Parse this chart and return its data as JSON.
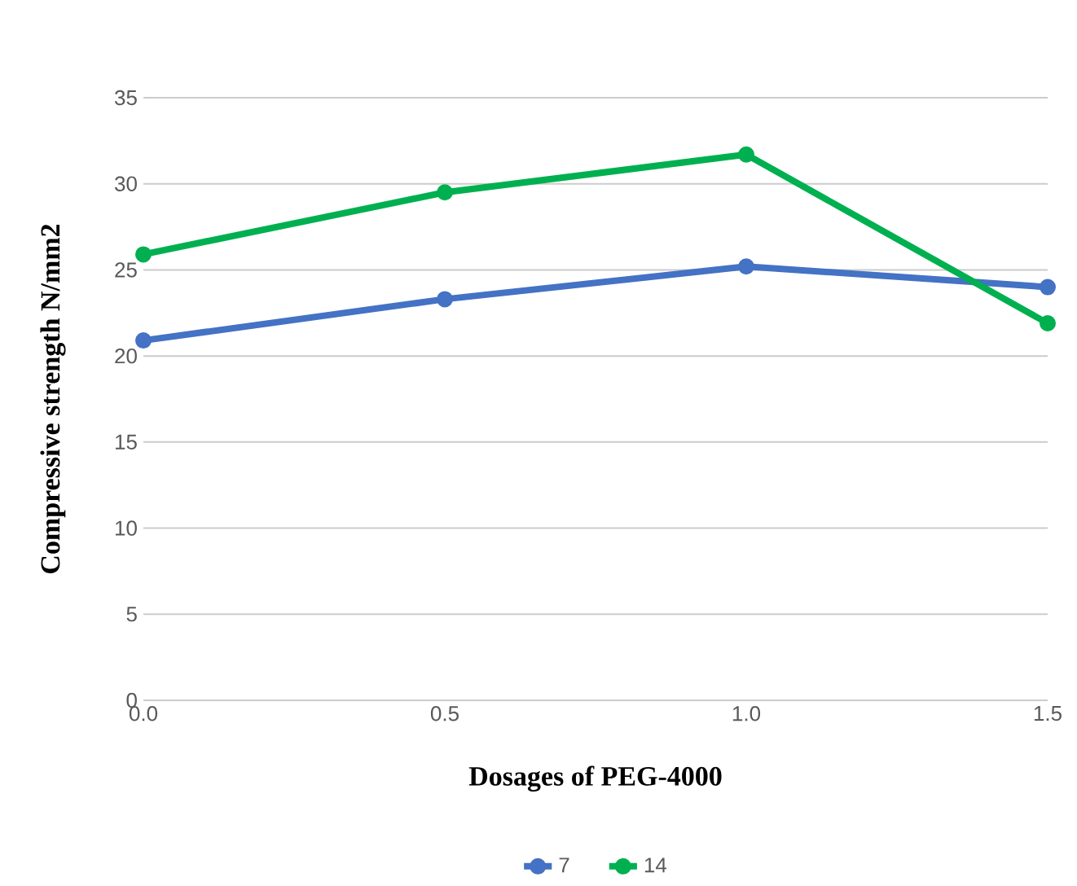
{
  "chart_data": {
    "type": "line",
    "xlabel": "Dosages of PEG-4000",
    "ylabel": "Compressive strength N/mm2",
    "x": [
      0.0,
      0.5,
      1.0,
      1.5
    ],
    "series": [
      {
        "name": "7",
        "color": "#4472c4",
        "values": [
          20.9,
          23.3,
          25.2,
          24.0
        ]
      },
      {
        "name": "14",
        "color": "#00b050",
        "values": [
          25.9,
          29.5,
          31.7,
          21.9
        ]
      }
    ],
    "xlim": [
      0,
      1.5
    ],
    "xticks": [
      {
        "value": 0,
        "label": "0.0"
      },
      {
        "value": 0.5,
        "label": "0.5"
      },
      {
        "value": 1,
        "label": "1.0"
      },
      {
        "value": 1.5,
        "label": "1.5"
      }
    ],
    "ylim": [
      0,
      35
    ],
    "yticks": [
      0,
      5,
      10,
      15,
      20,
      25,
      30,
      35
    ],
    "grid": "y",
    "legend": "bottom",
    "marker": "circle",
    "line_style": "solid"
  }
}
